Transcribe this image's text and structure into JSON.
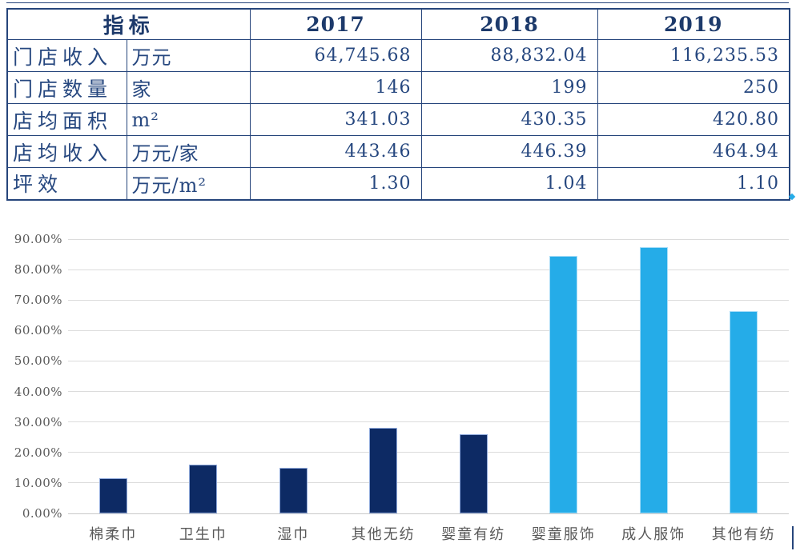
{
  "table": {
    "header_indicator": "指标",
    "years": [
      "2017",
      "2018",
      "2019"
    ],
    "rows": [
      {
        "name": "门店收入",
        "unit": "万元",
        "values": [
          "64,745.68",
          "88,832.04",
          "116,235.53"
        ]
      },
      {
        "name": "门店数量",
        "unit": "家",
        "values": [
          "146",
          "199",
          "250"
        ]
      },
      {
        "name": "店均面积",
        "unit": "m²",
        "values": [
          "341.03",
          "430.35",
          "420.80"
        ]
      },
      {
        "name": "店均收入",
        "unit": "万元/家",
        "values": [
          "443.46",
          "446.39",
          "464.94"
        ]
      },
      {
        "name": "坪效",
        "unit": "万元/m²",
        "values": [
          "1.30",
          "1.04",
          "1.10"
        ]
      }
    ],
    "border_color": "#26457B",
    "header_text_color": "#1D3A6B",
    "cell_text_color": "#26477F"
  },
  "chart_data": {
    "type": "bar",
    "title": "",
    "categories": [
      "棉柔巾",
      "卫生巾",
      "湿巾",
      "其他无纺",
      "婴童有纺",
      "婴童服饰",
      "成人服饰",
      "其他有纺"
    ],
    "values": [
      11.5,
      16.0,
      15.0,
      28.0,
      26.0,
      84.5,
      87.5,
      66.5
    ],
    "value_unit": "%",
    "bar_colors": [
      "#0D2A64",
      "#0D2A64",
      "#0D2A64",
      "#0D2A64",
      "#0D2A64",
      "#25ACE8",
      "#25ACE8",
      "#25ACE8"
    ],
    "bar_border_colors": [
      "#8FA9DB",
      "#8FA9DB",
      "#8FA9DB",
      "#8FA9DB",
      "#8FA9DB",
      "#A8DDF8",
      "#A8DDF8",
      "#A8DDF8"
    ],
    "ytick_labels": [
      "0.00%",
      "10.00%",
      "20.00%",
      "30.00%",
      "40.00%",
      "50.00%",
      "60.00%",
      "70.00%",
      "80.00%",
      "90.00%"
    ],
    "ytick_step": 10,
    "ylim": [
      0,
      90
    ],
    "grid": true,
    "gridline_color": "#DCDCDC",
    "axis_line_color": "#C9C9C9",
    "axis_text_color": "#595959",
    "legend": "none"
  }
}
